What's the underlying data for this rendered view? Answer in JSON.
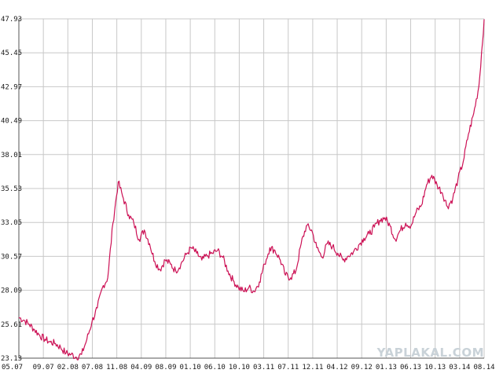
{
  "chart_data": {
    "type": "line",
    "title": "",
    "xlabel": "",
    "ylabel": "",
    "grid": true,
    "ylim": [
      23.13,
      47.93
    ],
    "y_ticks": [
      "23.13",
      "25.61",
      "28.09",
      "30.57",
      "33.05",
      "35.53",
      "38.01",
      "40.49",
      "42.97",
      "45.45",
      "47.93"
    ],
    "x_ticks": [
      "05.07",
      "09.07",
      "02.08",
      "07.08",
      "11.08",
      "04.09",
      "08.09",
      "01.10",
      "06.10",
      "10.10",
      "03.11",
      "07.11",
      "12.11",
      "04.12",
      "09.12",
      "01.13",
      "06.13",
      "10.13",
      "03.14",
      "08.14"
    ],
    "series": [
      {
        "color": "#cc1155",
        "points": [
          [
            0,
            26.1
          ],
          [
            1,
            25.9
          ],
          [
            2,
            25.6
          ],
          [
            3,
            25.2
          ],
          [
            4,
            24.8
          ],
          [
            5,
            24.5
          ],
          [
            6,
            24.3
          ],
          [
            7,
            24.2
          ],
          [
            8,
            23.9
          ],
          [
            9,
            23.5
          ],
          [
            10,
            23.4
          ],
          [
            11,
            23.2
          ],
          [
            12,
            23.4
          ],
          [
            13,
            24.5
          ],
          [
            14,
            25.8
          ],
          [
            15,
            26.8
          ],
          [
            16,
            28.3
          ],
          [
            17,
            29.0
          ],
          [
            18,
            33.0
          ],
          [
            19,
            36.0
          ],
          [
            20,
            34.8
          ],
          [
            21,
            33.6
          ],
          [
            22,
            33.0
          ],
          [
            23,
            31.8
          ],
          [
            24,
            32.5
          ],
          [
            25,
            31.5
          ],
          [
            26,
            30.2
          ],
          [
            27,
            29.6
          ],
          [
            28,
            30.3
          ],
          [
            29,
            30.0
          ],
          [
            30,
            29.5
          ],
          [
            31,
            30.0
          ],
          [
            32,
            30.7
          ],
          [
            33,
            31.2
          ],
          [
            34,
            30.8
          ],
          [
            35,
            30.3
          ],
          [
            36,
            30.6
          ],
          [
            37,
            30.8
          ],
          [
            38,
            31.0
          ],
          [
            39,
            30.5
          ],
          [
            40,
            29.5
          ],
          [
            41,
            28.8
          ],
          [
            42,
            28.3
          ],
          [
            43,
            28.0
          ],
          [
            44,
            28.3
          ],
          [
            45,
            28.0
          ],
          [
            46,
            28.7
          ],
          [
            47,
            30.0
          ],
          [
            48,
            31.2
          ],
          [
            49,
            31.0
          ],
          [
            50,
            30.3
          ],
          [
            51,
            29.2
          ],
          [
            52,
            29.0
          ],
          [
            53,
            29.5
          ],
          [
            54,
            31.5
          ],
          [
            55,
            32.8
          ],
          [
            56,
            32.5
          ],
          [
            57,
            31.2
          ],
          [
            58,
            30.5
          ],
          [
            59,
            31.5
          ],
          [
            60,
            31.3
          ],
          [
            61,
            30.8
          ],
          [
            62,
            30.3
          ],
          [
            63,
            30.6
          ],
          [
            64,
            30.9
          ],
          [
            65,
            31.4
          ],
          [
            66,
            31.9
          ],
          [
            67,
            32.2
          ],
          [
            68,
            32.7
          ],
          [
            69,
            33.2
          ],
          [
            70,
            33.4
          ],
          [
            71,
            32.8
          ],
          [
            72,
            31.8
          ],
          [
            73,
            32.5
          ],
          [
            74,
            33.0
          ],
          [
            75,
            32.8
          ],
          [
            76,
            33.8
          ],
          [
            77,
            34.3
          ],
          [
            78,
            35.8
          ],
          [
            79,
            36.5
          ],
          [
            80,
            35.8
          ],
          [
            81,
            35.2
          ],
          [
            82,
            34.2
          ],
          [
            83,
            34.8
          ],
          [
            84,
            36.2
          ],
          [
            85,
            37.5
          ],
          [
            86,
            39.5
          ],
          [
            87,
            41.0
          ],
          [
            88,
            43.0
          ],
          [
            89,
            47.9
          ]
        ]
      }
    ]
  },
  "watermark": "YAPLAKAL.COM"
}
